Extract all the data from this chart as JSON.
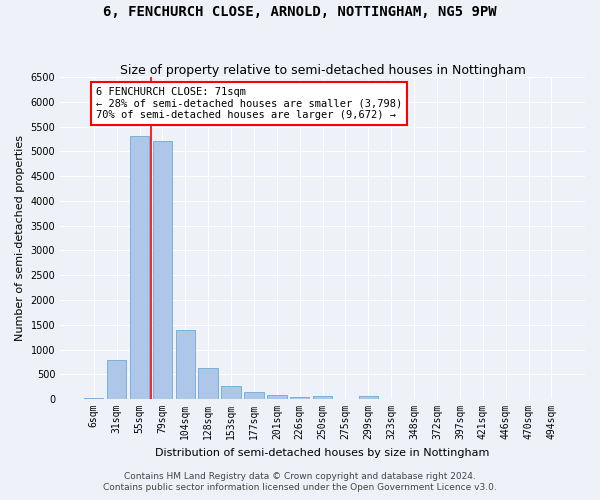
{
  "title": "6, FENCHURCH CLOSE, ARNOLD, NOTTINGHAM, NG5 9PW",
  "subtitle": "Size of property relative to semi-detached houses in Nottingham",
  "xlabel": "Distribution of semi-detached houses by size in Nottingham",
  "ylabel": "Number of semi-detached properties",
  "categories": [
    "6sqm",
    "31sqm",
    "55sqm",
    "79sqm",
    "104sqm",
    "128sqm",
    "153sqm",
    "177sqm",
    "201sqm",
    "226sqm",
    "250sqm",
    "275sqm",
    "299sqm",
    "323sqm",
    "348sqm",
    "372sqm",
    "397sqm",
    "421sqm",
    "446sqm",
    "470sqm",
    "494sqm"
  ],
  "values": [
    30,
    780,
    5310,
    5200,
    1400,
    630,
    270,
    140,
    80,
    50,
    60,
    0,
    70,
    0,
    0,
    0,
    0,
    0,
    0,
    0,
    0
  ],
  "bar_color": "#aec6e8",
  "bar_edge_color": "#5a9fd4",
  "annotation_box_color": "#cc0000",
  "ylim": [
    0,
    6500
  ],
  "yticks": [
    0,
    500,
    1000,
    1500,
    2000,
    2500,
    3000,
    3500,
    4000,
    4500,
    5000,
    5500,
    6000,
    6500
  ],
  "smaller_pct": "28%",
  "smaller_n": "3,798",
  "larger_pct": "70%",
  "larger_n": "9,672",
  "footer1": "Contains HM Land Registry data © Crown copyright and database right 2024.",
  "footer2": "Contains public sector information licensed under the Open Government Licence v3.0.",
  "bg_color": "#eef2f8",
  "plot_bg_color": "#eef2f8",
  "grid_color": "#ffffff",
  "title_fontsize": 10,
  "subtitle_fontsize": 9,
  "axis_label_fontsize": 8,
  "tick_fontsize": 7,
  "annotation_fontsize": 7.5,
  "footer_fontsize": 6.5
}
